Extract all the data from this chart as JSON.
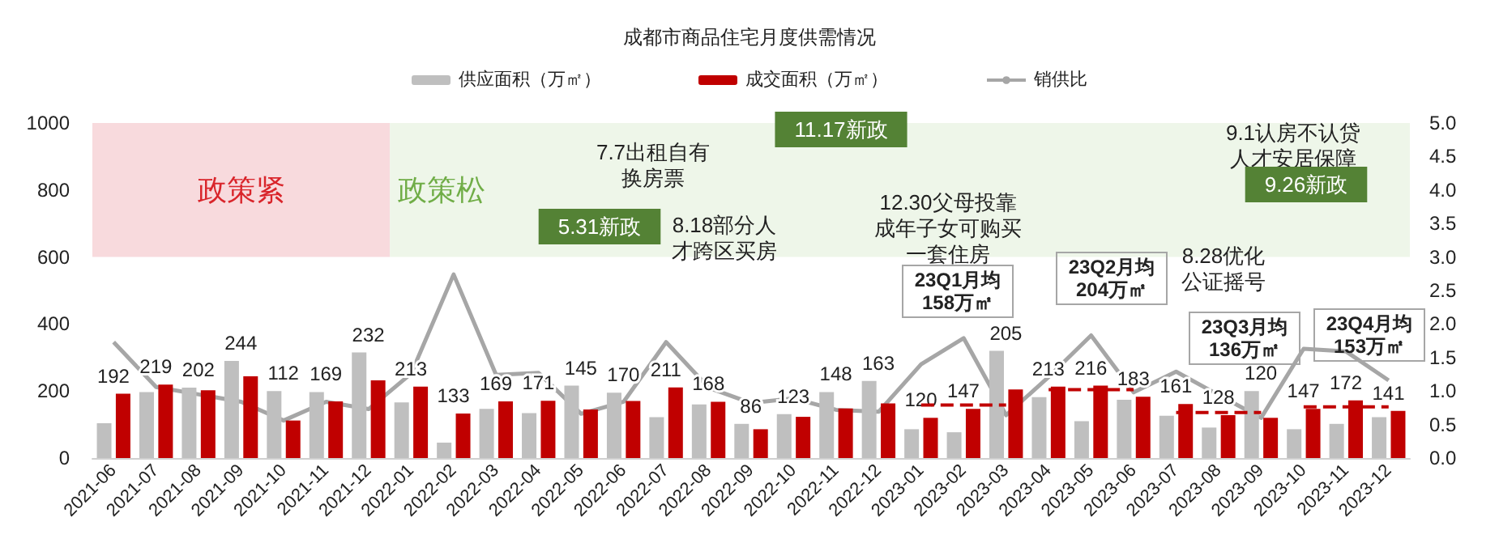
{
  "chart_data": {
    "type": "bar",
    "title": "成都市商品住宅月度供需情况",
    "categories": [
      "2021-06",
      "2021-07",
      "2021-08",
      "2021-09",
      "2021-10",
      "2021-11",
      "2021-12",
      "2022-01",
      "2022-02",
      "2022-03",
      "2022-04",
      "2022-05",
      "2022-06",
      "2022-07",
      "2022-08",
      "2022-09",
      "2022-10",
      "2022-11",
      "2022-12",
      "2023-01",
      "2023-02",
      "2023-03",
      "2023-04",
      "2023-05",
      "2023-06",
      "2023-07",
      "2023-08",
      "2023-09",
      "2023-10",
      "2023-11",
      "2023-12"
    ],
    "series": [
      {
        "name": "供应面积（万㎡）",
        "color": "#bfbfbf",
        "values": [
          104,
          197,
          210,
          290,
          200,
          197,
          315,
          166,
          46,
          147,
          134,
          216,
          195,
          122,
          160,
          102,
          131,
          197,
          230,
          86,
          77,
          320,
          182,
          110,
          174,
          126,
          91,
          200,
          86,
          102,
          122
        ]
      },
      {
        "name": "成交面积（万㎡）",
        "color": "#c00000",
        "values": [
          192,
          219,
          202,
          244,
          112,
          169,
          232,
          213,
          133,
          169,
          171,
          145,
          170,
          211,
          168,
          86,
          123,
          148,
          163,
          120,
          147,
          205,
          213,
          216,
          183,
          161,
          128,
          120,
          147,
          172,
          141
        ],
        "value_labels": [
          "192",
          "219",
          "202",
          "244",
          "112",
          "169",
          "232",
          "213",
          "133",
          "169",
          "171",
          "145",
          "170",
          "211",
          "168",
          "86",
          "123",
          "148",
          "163",
          "120",
          "147",
          "205",
          "213",
          "216",
          "183",
          "161",
          "128",
          "120",
          "147",
          "172",
          "141"
        ]
      },
      {
        "name": "销供比",
        "type": "line",
        "axis": "y2",
        "color": "#a6a6a6",
        "marker": "none",
        "line_style": "solid",
        "values": [
          1.73,
          1.06,
          0.95,
          0.84,
          0.56,
          0.84,
          0.73,
          1.26,
          2.74,
          1.24,
          1.27,
          0.66,
          0.84,
          1.73,
          1.05,
          0.82,
          0.89,
          0.72,
          0.69,
          1.4,
          1.79,
          0.64,
          1.21,
          1.83,
          0.98,
          1.29,
          0.94,
          0.6,
          1.63,
          1.59,
          1.16
        ]
      },
      {
        "type": "line",
        "color": "#c00000",
        "marker": "none",
        "line_style": "dashed",
        "values": [
          null,
          null,
          null,
          null,
          null,
          null,
          null,
          null,
          null,
          null,
          null,
          null,
          null,
          null,
          null,
          null,
          null,
          null,
          null,
          158,
          158,
          158,
          null,
          null,
          null,
          null,
          null,
          null,
          null,
          null,
          null
        ]
      },
      {
        "type": "line",
        "color": "#c00000",
        "marker": "none",
        "line_style": "dashed",
        "values": [
          null,
          null,
          null,
          null,
          null,
          null,
          null,
          null,
          null,
          null,
          null,
          null,
          null,
          null,
          null,
          null,
          null,
          null,
          null,
          null,
          null,
          null,
          204,
          204,
          204,
          null,
          null,
          null,
          null,
          null,
          null
        ]
      },
      {
        "type": "line",
        "color": "#c00000",
        "marker": "none",
        "line_style": "dashed",
        "values": [
          null,
          null,
          null,
          null,
          null,
          null,
          null,
          null,
          null,
          null,
          null,
          null,
          null,
          null,
          null,
          null,
          null,
          null,
          null,
          null,
          null,
          null,
          null,
          null,
          null,
          136,
          136,
          136,
          null,
          null,
          null
        ]
      },
      {
        "type": "line",
        "color": "#c00000",
        "marker": "none",
        "line_style": "dashed",
        "values": [
          null,
          null,
          null,
          null,
          null,
          null,
          null,
          null,
          null,
          null,
          null,
          null,
          null,
          null,
          null,
          null,
          null,
          null,
          null,
          null,
          null,
          null,
          null,
          null,
          null,
          null,
          null,
          null,
          153,
          153,
          153
        ]
      }
    ],
    "ylim": [
      0,
      1000
    ],
    "yticks": [
      0,
      200,
      400,
      600,
      800,
      1000
    ],
    "y2lim": [
      0,
      5
    ],
    "y2ticks": [
      {
        "value": 0,
        "label": "0.0"
      },
      {
        "value": 0.5,
        "label": "0.5"
      },
      {
        "value": 1,
        "label": "1.0"
      },
      {
        "value": 1.5,
        "label": "1.5"
      },
      {
        "value": 2,
        "label": "2.0"
      },
      {
        "value": 2.5,
        "label": "2.5"
      },
      {
        "value": 3,
        "label": "3.0"
      },
      {
        "value": 3.5,
        "label": "3.5"
      },
      {
        "value": 4,
        "label": "4.0"
      },
      {
        "value": 4.5,
        "label": "4.5"
      },
      {
        "value": 5,
        "label": "5.0"
      }
    ],
    "bands": [
      {
        "axis": "x",
        "from": "2021-06",
        "to": "2021-12",
        "label": "政策紧",
        "color": "#f8dadd"
      },
      {
        "axis": "x",
        "from": "2022-01",
        "to": "2023-12",
        "label": "政策松",
        "color": "#eef6e9"
      }
    ],
    "annotations": [
      "7.7出租自有换房票",
      "5.31新政",
      "8.18部分人才跨区买房",
      "11.17新政",
      "12.30父母投靠成年子女可购买一套住房",
      "9.1认房不认贷人才安居保障",
      "9.26新政",
      "8.28优化公证摇号",
      "23Q1月均158万㎡",
      "23Q2月均204万㎡",
      "23Q3月均136万㎡",
      "23Q4月均153万㎡"
    ],
    "legend": "top",
    "grid": false
  }
}
